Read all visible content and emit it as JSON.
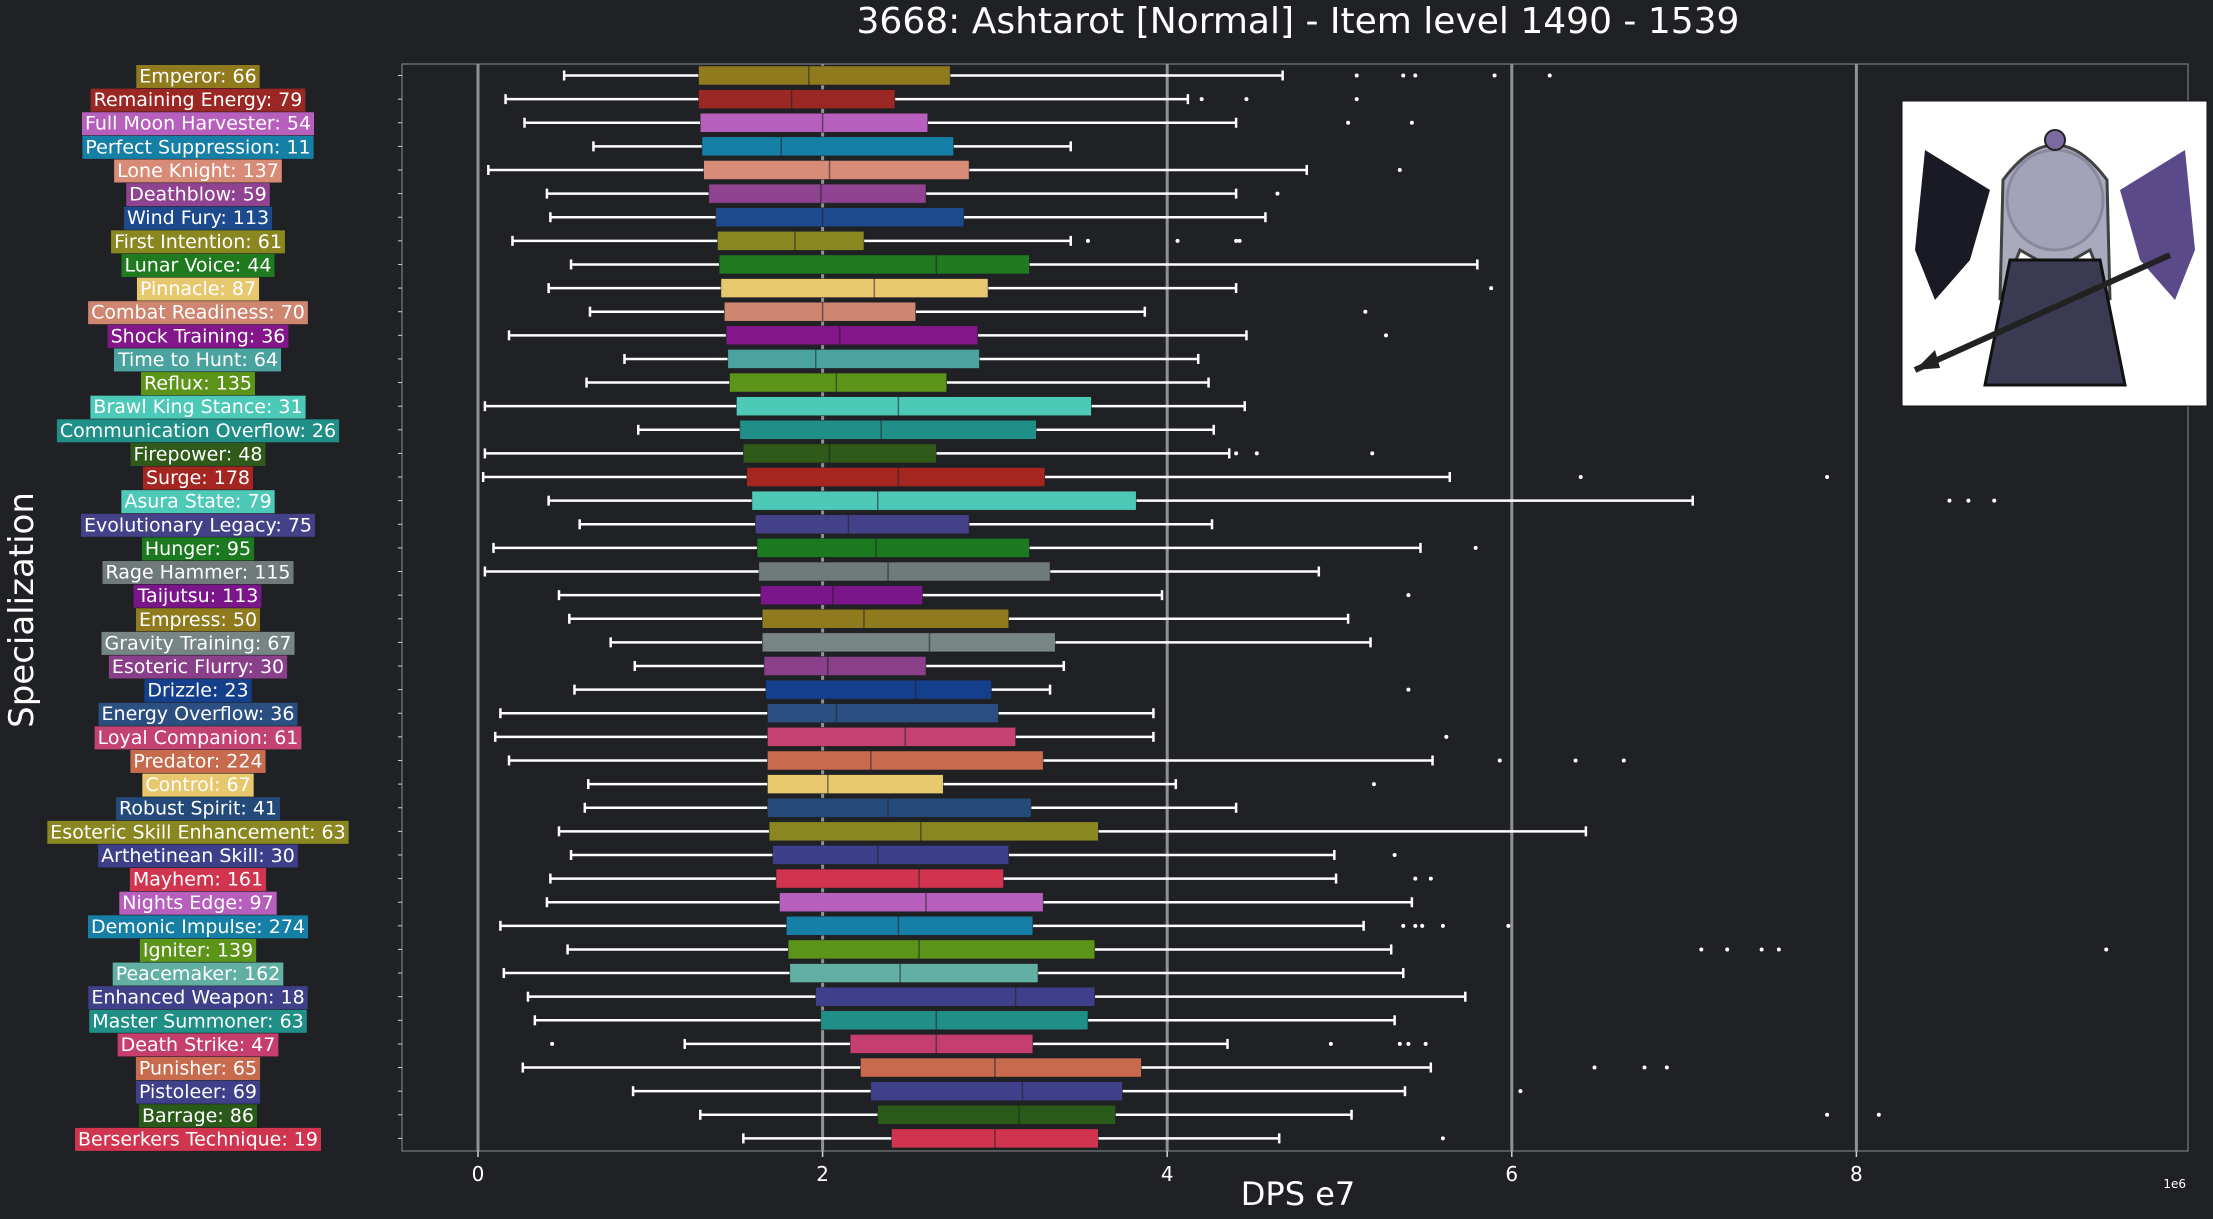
{
  "chart_data": {
    "type": "boxplot",
    "title": "3668: Ashtarot [Normal] - Item level 1490 - 1539",
    "xlabel": "DPS e7",
    "ylabel": "Specialization",
    "x_offset_label": "1e6",
    "xlim": [
      -0.43,
      9.96
    ],
    "xticks": [
      0,
      2,
      4,
      6,
      8
    ],
    "grid": "vertical",
    "categories": [
      {
        "label": "Emperor: 66",
        "color": "#8f7a1e",
        "whislo": 0.5,
        "q1": 1.28,
        "med": 1.92,
        "q3": 2.74,
        "whishi": 4.67,
        "fliers": [
          5.1,
          5.37,
          5.44,
          5.9,
          6.22
        ]
      },
      {
        "label": "Remaining Energy: 79",
        "color": "#9a2724",
        "whislo": 0.16,
        "q1": 1.28,
        "med": 1.82,
        "q3": 2.42,
        "whishi": 4.12,
        "fliers": [
          4.2,
          4.46,
          5.1
        ]
      },
      {
        "label": "Full Moon Harvester: 54",
        "color": "#b65fbc",
        "whislo": 0.27,
        "q1": 1.29,
        "med": 2.0,
        "q3": 2.61,
        "whishi": 4.4,
        "fliers": [
          5.05,
          5.42
        ]
      },
      {
        "label": "Perfect Suppression: 11",
        "color": "#157fa5",
        "whislo": 0.67,
        "q1": 1.3,
        "med": 1.76,
        "q3": 2.76,
        "whishi": 3.44,
        "fliers": []
      },
      {
        "label": "Lone Knight: 137",
        "color": "#d88b76",
        "whislo": 0.06,
        "q1": 1.31,
        "med": 2.04,
        "q3": 2.85,
        "whishi": 4.81,
        "fliers": [
          5.35
        ]
      },
      {
        "label": "Deathblow: 59",
        "color": "#8f4390",
        "whislo": 0.4,
        "q1": 1.34,
        "med": 1.99,
        "q3": 2.6,
        "whishi": 4.4,
        "fliers": [
          4.64
        ]
      },
      {
        "label": "Wind Fury: 113",
        "color": "#1d4a8c",
        "whislo": 0.42,
        "q1": 1.38,
        "med": 2.0,
        "q3": 2.82,
        "whishi": 4.57,
        "fliers": []
      },
      {
        "label": "First Intention: 61",
        "color": "#8a8620",
        "whislo": 0.2,
        "q1": 1.39,
        "med": 1.84,
        "q3": 2.24,
        "whishi": 3.44,
        "fliers": [
          3.54,
          4.06,
          4.4,
          4.42
        ]
      },
      {
        "label": "Lunar Voice: 44",
        "color": "#1f7a20",
        "whislo": 0.54,
        "q1": 1.4,
        "med": 2.66,
        "q3": 3.2,
        "whishi": 5.8,
        "fliers": []
      },
      {
        "label": "Pinnacle: 87",
        "color": "#e8c86e",
        "whislo": 0.41,
        "q1": 1.41,
        "med": 2.3,
        "q3": 2.96,
        "whishi": 4.4,
        "fliers": [
          5.88
        ]
      },
      {
        "label": "Combat Readiness: 70",
        "color": "#cf8670",
        "whislo": 0.65,
        "q1": 1.43,
        "med": 2.0,
        "q3": 2.54,
        "whishi": 3.87,
        "fliers": [
          5.15
        ]
      },
      {
        "label": "Shock Training: 36",
        "color": "#82168a",
        "whislo": 0.18,
        "q1": 1.44,
        "med": 2.1,
        "q3": 2.9,
        "whishi": 4.46,
        "fliers": [
          5.27
        ]
      },
      {
        "label": "Time to Hunt: 64",
        "color": "#4ba3a0",
        "whislo": 0.85,
        "q1": 1.45,
        "med": 1.96,
        "q3": 2.91,
        "whishi": 4.18,
        "fliers": []
      },
      {
        "label": "Reflux: 135",
        "color": "#5b9418",
        "whislo": 0.63,
        "q1": 1.46,
        "med": 2.08,
        "q3": 2.72,
        "whishi": 4.24,
        "fliers": []
      },
      {
        "label": "Brawl King Stance: 31",
        "color": "#4dcab7",
        "whislo": 0.04,
        "q1": 1.5,
        "med": 2.44,
        "q3": 3.56,
        "whishi": 4.45,
        "fliers": []
      },
      {
        "label": "Communication Overflow: 26",
        "color": "#1f8f87",
        "whislo": 0.93,
        "q1": 1.52,
        "med": 2.34,
        "q3": 3.24,
        "whishi": 4.27,
        "fliers": []
      },
      {
        "label": "Firepower: 48",
        "color": "#2f5a1a",
        "whislo": 0.04,
        "q1": 1.54,
        "med": 2.04,
        "q3": 2.66,
        "whishi": 4.36,
        "fliers": [
          4.4,
          4.52,
          5.19
        ]
      },
      {
        "label": "Surge: 178",
        "color": "#a52621",
        "whislo": 0.03,
        "q1": 1.56,
        "med": 2.44,
        "q3": 3.29,
        "whishi": 5.64,
        "fliers": [
          6.4,
          7.83
        ]
      },
      {
        "label": "Asura State: 79",
        "color": "#4ec9b8",
        "whislo": 0.41,
        "q1": 1.59,
        "med": 2.32,
        "q3": 3.82,
        "whishi": 7.05,
        "fliers": [
          8.54,
          8.65,
          8.8
        ]
      },
      {
        "label": "Evolutionary Legacy: 75",
        "color": "#454189",
        "whislo": 0.59,
        "q1": 1.61,
        "med": 2.15,
        "q3": 2.85,
        "whishi": 4.26,
        "fliers": []
      },
      {
        "label": "Hunger: 95",
        "color": "#1b7a20",
        "whislo": 0.09,
        "q1": 1.62,
        "med": 2.31,
        "q3": 3.2,
        "whishi": 5.47,
        "fliers": [
          5.79
        ]
      },
      {
        "label": "Rage Hammer: 115",
        "color": "#707a7a",
        "whislo": 0.04,
        "q1": 1.63,
        "med": 2.38,
        "q3": 3.32,
        "whishi": 4.88,
        "fliers": []
      },
      {
        "label": "Taijutsu: 113",
        "color": "#7a168a",
        "whislo": 0.47,
        "q1": 1.64,
        "med": 2.06,
        "q3": 2.58,
        "whishi": 3.97,
        "fliers": [
          5.4
        ]
      },
      {
        "label": "Empress: 50",
        "color": "#8f7a1e",
        "whislo": 0.53,
        "q1": 1.65,
        "med": 2.24,
        "q3": 3.08,
        "whishi": 5.05,
        "fliers": []
      },
      {
        "label": "Gravity Training: 67",
        "color": "#778585",
        "whislo": 0.77,
        "q1": 1.65,
        "med": 2.62,
        "q3": 3.35,
        "whishi": 5.18,
        "fliers": []
      },
      {
        "label": "Esoteric Flurry: 30",
        "color": "#8a3f8a",
        "whislo": 0.91,
        "q1": 1.66,
        "med": 2.03,
        "q3": 2.6,
        "whishi": 3.4,
        "fliers": []
      },
      {
        "label": "Drizzle: 23",
        "color": "#143f8c",
        "whislo": 0.56,
        "q1": 1.67,
        "med": 2.54,
        "q3": 2.98,
        "whishi": 3.32,
        "fliers": [
          5.4
        ]
      },
      {
        "label": "Energy Overflow: 36",
        "color": "#2a4f80",
        "whislo": 0.13,
        "q1": 1.68,
        "med": 2.08,
        "q3": 3.02,
        "whishi": 3.92,
        "fliers": []
      },
      {
        "label": "Loyal Companion: 61",
        "color": "#c34272",
        "whislo": 0.1,
        "q1": 1.68,
        "med": 2.48,
        "q3": 3.12,
        "whishi": 3.92,
        "fliers": [
          5.62
        ]
      },
      {
        "label": "Predator: 224",
        "color": "#c76a4e",
        "whislo": 0.18,
        "q1": 1.68,
        "med": 2.28,
        "q3": 3.28,
        "whishi": 5.54,
        "fliers": [
          5.93,
          6.37,
          6.65
        ]
      },
      {
        "label": "Control: 67",
        "color": "#e8c86e",
        "whislo": 0.64,
        "q1": 1.68,
        "med": 2.03,
        "q3": 2.7,
        "whishi": 4.05,
        "fliers": [
          5.2
        ]
      },
      {
        "label": "Robust Spirit: 41",
        "color": "#244a7a",
        "whislo": 0.62,
        "q1": 1.68,
        "med": 2.38,
        "q3": 3.21,
        "whishi": 4.4,
        "fliers": []
      },
      {
        "label": "Esoteric Skill Enhancement: 63",
        "color": "#8a8620",
        "whislo": 0.47,
        "q1": 1.69,
        "med": 2.57,
        "q3": 3.6,
        "whishi": 6.43,
        "fliers": []
      },
      {
        "label": "Arthetinean Skill: 30",
        "color": "#3d3f8a",
        "whislo": 0.54,
        "q1": 1.71,
        "med": 2.32,
        "q3": 3.08,
        "whishi": 4.97,
        "fliers": [
          5.32
        ]
      },
      {
        "label": "Mayhem: 161",
        "color": "#d0344e",
        "whislo": 0.42,
        "q1": 1.73,
        "med": 2.56,
        "q3": 3.05,
        "whishi": 4.98,
        "fliers": [
          5.44,
          5.53
        ]
      },
      {
        "label": "Nights Edge: 97",
        "color": "#b65fbc",
        "whislo": 0.4,
        "q1": 1.75,
        "med": 2.6,
        "q3": 3.28,
        "whishi": 5.42,
        "fliers": []
      },
      {
        "label": "Demonic Impulse: 274",
        "color": "#157fa5",
        "whislo": 0.13,
        "q1": 1.79,
        "med": 2.44,
        "q3": 3.22,
        "whishi": 5.14,
        "fliers": [
          5.37,
          5.44,
          5.48,
          5.6,
          5.98
        ]
      },
      {
        "label": "Igniter: 139",
        "color": "#5b9418",
        "whislo": 0.52,
        "q1": 1.8,
        "med": 2.56,
        "q3": 3.58,
        "whishi": 5.3,
        "fliers": [
          7.1,
          7.25,
          7.45,
          7.55,
          9.45
        ]
      },
      {
        "label": "Peacemaker: 162",
        "color": "#62b0a4",
        "whislo": 0.15,
        "q1": 1.81,
        "med": 2.45,
        "q3": 3.25,
        "whishi": 5.37,
        "fliers": []
      },
      {
        "label": "Enhanced Weapon: 18",
        "color": "#40408a",
        "whislo": 0.29,
        "q1": 1.96,
        "med": 3.12,
        "q3": 3.58,
        "whishi": 5.73,
        "fliers": []
      },
      {
        "label": "Master Summoner: 63",
        "color": "#1f8f87",
        "whislo": 0.33,
        "q1": 1.99,
        "med": 2.66,
        "q3": 3.54,
        "whishi": 5.32,
        "fliers": []
      },
      {
        "label": "Death Strike: 47",
        "color": "#c63e6e",
        "whislo": 1.2,
        "q1": 2.16,
        "med": 2.66,
        "q3": 3.22,
        "whishi": 4.35,
        "fliers": [
          0.43,
          4.95,
          5.35,
          5.4,
          5.5
        ]
      },
      {
        "label": "Punisher: 65",
        "color": "#c76a4e",
        "whislo": 0.26,
        "q1": 2.22,
        "med": 3.0,
        "q3": 3.85,
        "whishi": 5.53,
        "fliers": [
          6.48,
          6.77,
          6.9
        ]
      },
      {
        "label": "Pistoleer: 69",
        "color": "#3f3f8a",
        "whislo": 0.9,
        "q1": 2.28,
        "med": 3.16,
        "q3": 3.74,
        "whishi": 5.38,
        "fliers": [
          6.05
        ]
      },
      {
        "label": "Barrage: 86",
        "color": "#2a5a1a",
        "whislo": 1.29,
        "q1": 2.32,
        "med": 3.14,
        "q3": 3.7,
        "whishi": 5.07,
        "fliers": [
          7.83,
          8.13
        ]
      },
      {
        "label": "Berserkers Technique: 19",
        "color": "#d0344e",
        "whislo": 1.54,
        "q1": 2.4,
        "med": 3.0,
        "q3": 3.6,
        "whishi": 4.65,
        "fliers": [
          5.6
        ]
      }
    ]
  }
}
